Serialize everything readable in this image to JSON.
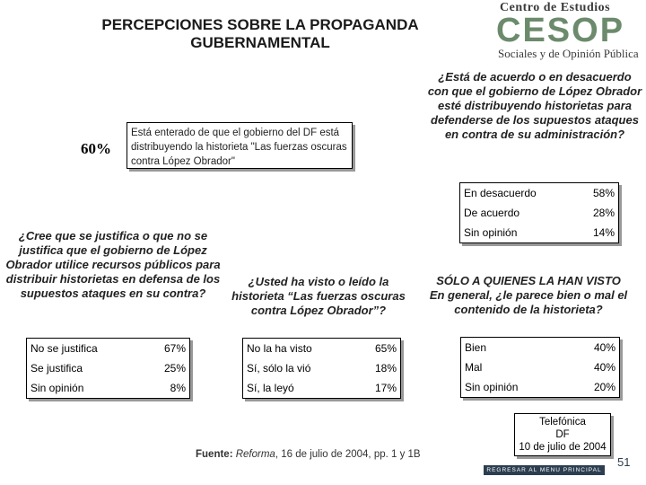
{
  "title": "PERCEPCIONES SOBRE LA PROPAGANDA GUBERNAMENTAL",
  "logo": {
    "line1": "Centro de Estudios",
    "mark": "CESOP",
    "line2": "Sociales y de Opinión Pública"
  },
  "highlight": {
    "percent": "60%",
    "text": "Está enterado de que el gobierno del DF está distribuyendo la historieta \"Las fuerzas oscuras contra López Obrador\""
  },
  "questions": {
    "q1": "¿Está de acuerdo o en desacuerdo con que el gobierno de López Obrador esté distribuyendo historietas para defenderse de los supuestos ataques en contra de su administración?",
    "q2": "¿Cree que se justifica o que no se justifica que el gobierno de López Obrador utilice recursos públicos para distribuir historietas en defensa de los supuestos ataques en su contra?",
    "q3": "¿Usted ha visto o leído la historieta “Las fuerzas oscuras contra López Obrador”?",
    "q4_line1": "SÓLO A QUIENES LA HAN VISTO",
    "q4_line2": "En general, ¿le parece bien o mal el contenido de la historieta?"
  },
  "tables": {
    "t1": [
      {
        "label": "En desacuerdo",
        "value": "58%"
      },
      {
        "label": "De acuerdo",
        "value": "28%"
      },
      {
        "label": "Sin opinión",
        "value": "14%"
      }
    ],
    "t2": [
      {
        "label": "No se justifica",
        "value": "67%"
      },
      {
        "label": "Se justifica",
        "value": "25%"
      },
      {
        "label": "Sin opinión",
        "value": "8%"
      }
    ],
    "t3": [
      {
        "label": "No la ha visto",
        "value": "65%"
      },
      {
        "label": "Sí, sólo la vió",
        "value": "18%"
      },
      {
        "label": "Sí, la leyó",
        "value": "17%"
      }
    ],
    "t4": [
      {
        "label": "Bien",
        "value": "40%"
      },
      {
        "label": "Mal",
        "value": "40%"
      },
      {
        "label": "Sin opinión",
        "value": "20%"
      }
    ]
  },
  "source": {
    "label": "Fuente:",
    "publication": "Reforma",
    "rest": ", 16 de julio de 2004, pp. 1 y 1B"
  },
  "stamp": {
    "line1": "Telefónica",
    "line2": "DF",
    "line3": "10 de julio de 2004"
  },
  "menu_button": "REGRESAR AL MENU PRINCIPAL",
  "page_number": "51"
}
